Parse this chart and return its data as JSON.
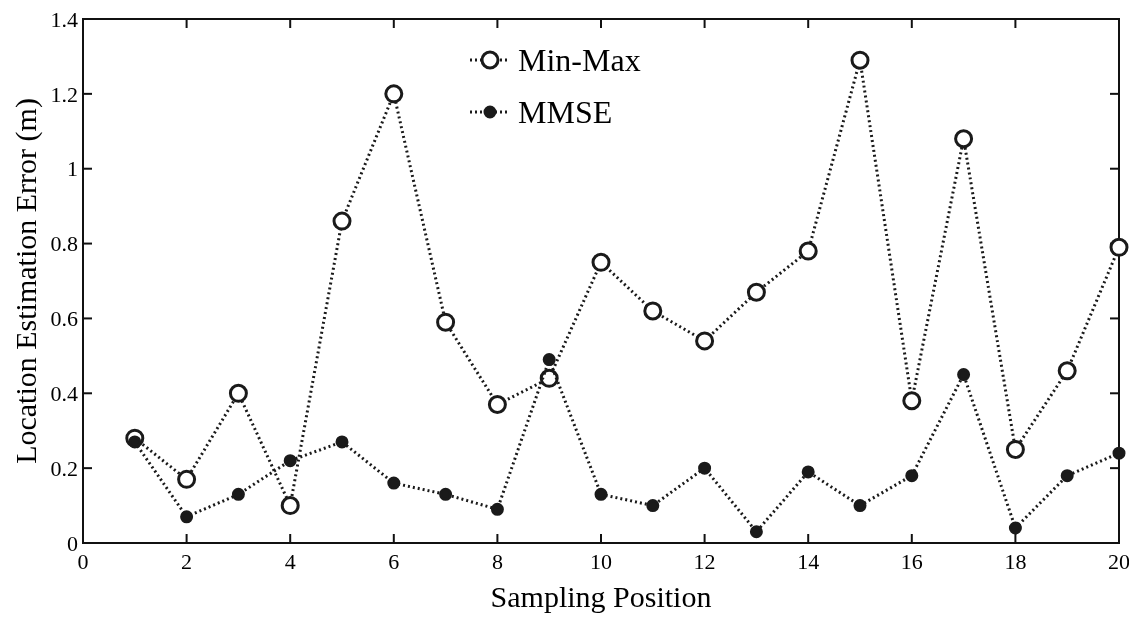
{
  "chart_data": {
    "type": "line",
    "xlabel": "Sampling Position",
    "ylabel": "Location Estimation Error (m)",
    "x": [
      1,
      2,
      3,
      4,
      5,
      6,
      7,
      8,
      9,
      10,
      11,
      12,
      13,
      14,
      15,
      16,
      17,
      18,
      19,
      20
    ],
    "series": [
      {
        "name": "Min-Max",
        "color": "#1a1a1a",
        "values": [
          0.28,
          0.17,
          0.4,
          0.1,
          0.86,
          1.2,
          0.59,
          0.37,
          0.44,
          0.75,
          0.62,
          0.54,
          0.67,
          0.78,
          1.29,
          0.38,
          1.08,
          0.25,
          0.46,
          0.79
        ]
      },
      {
        "name": "MMSE",
        "color": "#1a1a1a",
        "values": [
          0.27,
          0.07,
          0.13,
          0.22,
          0.27,
          0.16,
          0.13,
          0.09,
          0.49,
          0.13,
          0.1,
          0.2,
          0.03,
          0.19,
          0.1,
          0.18,
          0.45,
          0.04,
          0.18,
          0.24
        ]
      }
    ],
    "xlim": [
      0,
      20
    ],
    "xticks": [
      0,
      2,
      4,
      6,
      8,
      10,
      12,
      14,
      16,
      18,
      20
    ],
    "ylim": [
      0,
      1.4
    ],
    "yticks": [
      0,
      0.2,
      0.4,
      0.6,
      0.8,
      1,
      1.2,
      1.4
    ],
    "grid": false,
    "legend": "top",
    "marker": "circle",
    "line_style": "dotted"
  }
}
